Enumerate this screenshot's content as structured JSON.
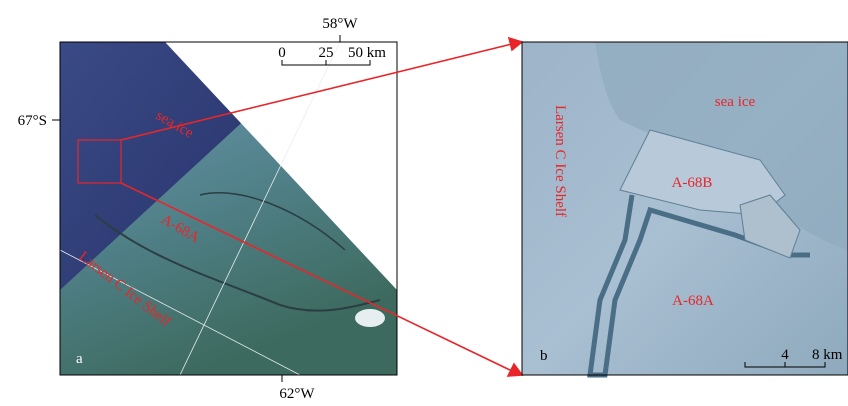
{
  "panel_a": {
    "label": "a",
    "lat_label": "67°S",
    "lon_top": "58°W",
    "lon_bottom": "62°W",
    "scale_bar": [
      "0",
      "25",
      "50 km"
    ],
    "labels": [
      "sea ice",
      "A-68A",
      "Larsen C Ice Shelf"
    ]
  },
  "panel_b": {
    "label": "b",
    "scale_bar": [
      "4",
      "8 km"
    ],
    "labels": [
      "sea ice",
      "A-68B",
      "A-68A",
      "Larsen C Ice Shelf"
    ]
  }
}
